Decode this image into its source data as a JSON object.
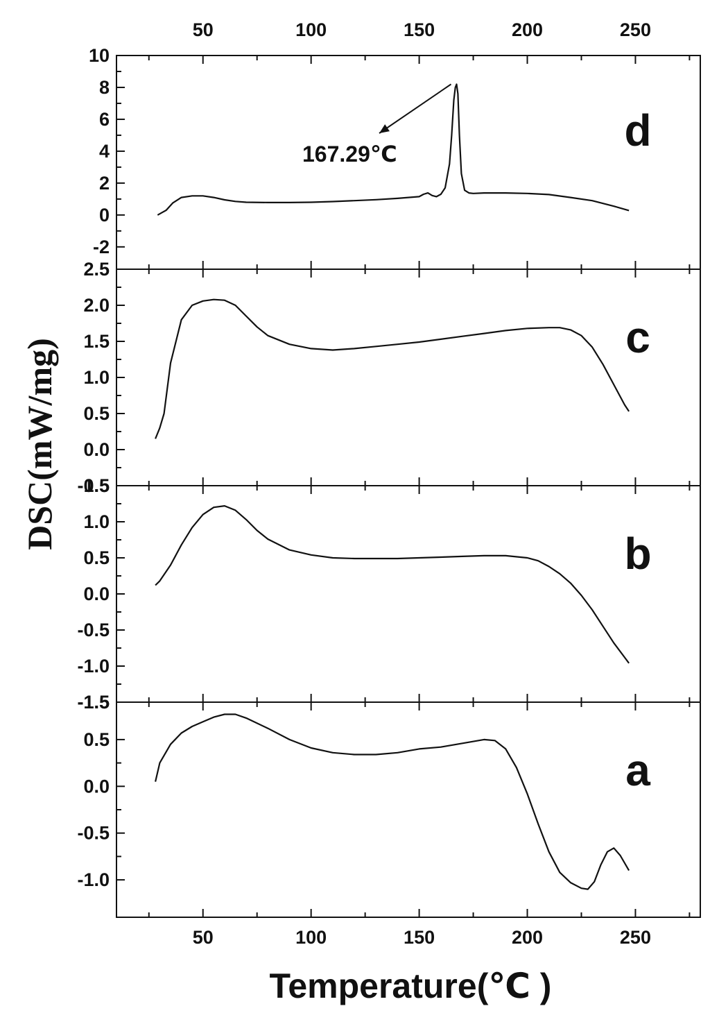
{
  "chart_data": {
    "type": "line",
    "xlabel": "Temperature(℃ )",
    "ylabel": "DSC(mW/mg)",
    "xlim": [
      10,
      280
    ],
    "x_ticks": [
      50,
      100,
      150,
      200,
      250
    ],
    "x_tick_labels": [
      "50",
      "100",
      "150",
      "200",
      "250"
    ],
    "panels": [
      {
        "label": "d",
        "ylim": [
          -3.4,
          10
        ],
        "y_ticks": [
          -2,
          0,
          2,
          4,
          6,
          8,
          10
        ],
        "y_tick_labels": [
          "-2",
          "0",
          "2",
          "4",
          "6",
          "8",
          "10"
        ],
        "annotation": {
          "text": "167.29℃",
          "peak_x": 167.29,
          "peak_y": 8.2
        },
        "series": [
          {
            "x": [
              29,
              31,
              33,
              36,
              40,
              45,
              50,
              55,
              60,
              65,
              70,
              80,
              90,
              100,
              110,
              120,
              130,
              140,
              150,
              152,
              154,
              156,
              158,
              160,
              162,
              164,
              165,
              166,
              166.7,
              167.29,
              167.9,
              168.6,
              169.5,
              171,
              173,
              175,
              180,
              190,
              200,
              210,
              220,
              230,
              240,
              247
            ],
            "y": [
              0.0,
              0.15,
              0.3,
              0.75,
              1.1,
              1.2,
              1.2,
              1.1,
              0.95,
              0.85,
              0.8,
              0.78,
              0.78,
              0.8,
              0.84,
              0.9,
              0.96,
              1.04,
              1.15,
              1.3,
              1.38,
              1.22,
              1.15,
              1.3,
              1.7,
              3.2,
              5.0,
              7.2,
              8.0,
              8.2,
              7.6,
              5.0,
              2.6,
              1.55,
              1.38,
              1.35,
              1.38,
              1.38,
              1.35,
              1.28,
              1.1,
              0.9,
              0.55,
              0.28
            ]
          }
        ]
      },
      {
        "label": "c",
        "ylim": [
          -0.5,
          2.5
        ],
        "y_ticks": [
          -0.5,
          0.0,
          0.5,
          1.0,
          1.5,
          2.0,
          2.5
        ],
        "y_tick_labels": [
          "-0.5",
          "0.0",
          "0.5",
          "1.0",
          "1.5",
          "2.0",
          "2.5"
        ],
        "series": [
          {
            "x": [
              28,
              30,
              32,
              35,
              40,
              45,
              50,
              55,
              60,
              65,
              70,
              75,
              80,
              90,
              100,
              110,
              120,
              130,
              140,
              150,
              160,
              170,
              180,
              190,
              200,
              210,
              215,
              220,
              225,
              230,
              235,
              240,
              245,
              247
            ],
            "y": [
              0.15,
              0.3,
              0.5,
              1.2,
              1.8,
              2.0,
              2.06,
              2.08,
              2.07,
              2.0,
              1.85,
              1.7,
              1.58,
              1.46,
              1.4,
              1.38,
              1.4,
              1.43,
              1.46,
              1.49,
              1.53,
              1.57,
              1.61,
              1.65,
              1.68,
              1.69,
              1.69,
              1.66,
              1.58,
              1.42,
              1.18,
              0.9,
              0.62,
              0.53
            ]
          }
        ]
      },
      {
        "label": "b",
        "ylim": [
          -1.5,
          1.5
        ],
        "y_ticks": [
          -1.5,
          -1.0,
          -0.5,
          0.0,
          0.5,
          1.0,
          1.5
        ],
        "y_tick_labels": [
          "-1.5",
          "-1.0",
          "-0.5",
          "0.0",
          "0.5",
          "1.0",
          "1.5"
        ],
        "series": [
          {
            "x": [
              28,
              30,
              35,
              40,
              45,
              50,
              55,
              60,
              65,
              70,
              75,
              80,
              90,
              100,
              110,
              120,
              130,
              140,
              150,
              160,
              170,
              180,
              190,
              200,
              205,
              210,
              215,
              220,
              225,
              230,
              235,
              240,
              245,
              247
            ],
            "y": [
              0.12,
              0.18,
              0.4,
              0.68,
              0.92,
              1.1,
              1.2,
              1.22,
              1.16,
              1.03,
              0.88,
              0.76,
              0.61,
              0.54,
              0.5,
              0.49,
              0.49,
              0.49,
              0.5,
              0.51,
              0.52,
              0.53,
              0.53,
              0.5,
              0.46,
              0.38,
              0.28,
              0.15,
              -0.02,
              -0.22,
              -0.45,
              -0.68,
              -0.88,
              -0.96
            ]
          }
        ]
      },
      {
        "label": "a",
        "ylim": [
          -1.4,
          0.9
        ],
        "y_ticks": [
          -1.0,
          -0.5,
          0.0,
          0.5
        ],
        "y_tick_labels": [
          "-1.0",
          "-0.5",
          "0.0",
          "0.5"
        ],
        "extra_top_tick_label": "-1.5",
        "series": [
          {
            "x": [
              28,
              30,
              35,
              40,
              45,
              50,
              55,
              60,
              65,
              70,
              80,
              90,
              100,
              110,
              120,
              130,
              140,
              150,
              160,
              170,
              180,
              185,
              190,
              195,
              200,
              205,
              210,
              215,
              220,
              225,
              228,
              231,
              234,
              237,
              240,
              243,
              247
            ],
            "y": [
              0.05,
              0.25,
              0.45,
              0.57,
              0.64,
              0.69,
              0.74,
              0.77,
              0.77,
              0.73,
              0.62,
              0.5,
              0.41,
              0.36,
              0.34,
              0.34,
              0.36,
              0.4,
              0.42,
              0.46,
              0.5,
              0.49,
              0.4,
              0.2,
              -0.08,
              -0.4,
              -0.7,
              -0.92,
              -1.03,
              -1.09,
              -1.1,
              -1.02,
              -0.84,
              -0.7,
              -0.66,
              -0.74,
              -0.9
            ]
          }
        ]
      }
    ]
  }
}
